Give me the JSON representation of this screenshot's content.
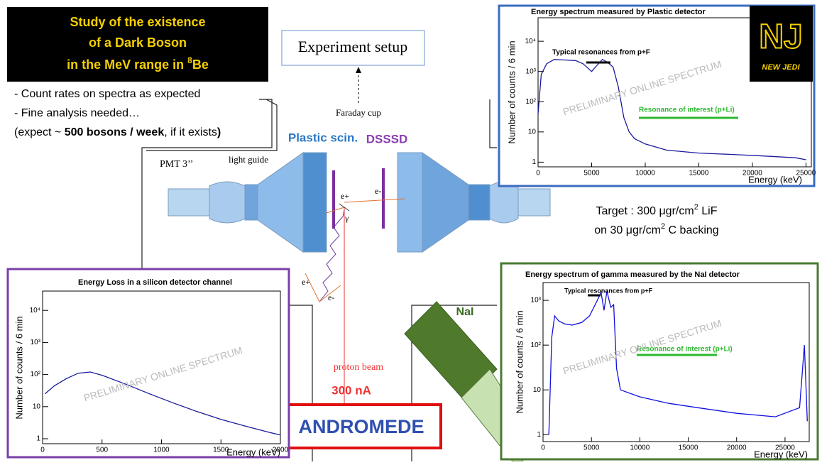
{
  "title_box": {
    "lines": [
      "Study of the existence",
      "of a Dark Boson"
    ],
    "line3": {
      "pre": "in the MeV range in ",
      "sup": "8",
      "post": "Be"
    }
  },
  "bullets": [
    "- Count rates on spectra as expected",
    "- Fine analysis needed…"
  ],
  "bullet3": {
    "pre": "(expect ~ ",
    "bold": "500 bosons / week",
    "post": ", if it exists",
    "end": ")"
  },
  "setup": {
    "title": "Experiment setup",
    "faraday": "Faraday cup",
    "plastic": "Plastic scin.",
    "dsssd": "DSSSD",
    "pmt": "PMT 3’’",
    "guide": "light guide",
    "e_plus": "e+",
    "e_minus": "e-",
    "gamma": "γ",
    "beam": "proton beam",
    "current": "300 nA",
    "nai": "NaI",
    "accelerator": "ANDROMEDE"
  },
  "target": {
    "line1": {
      "pre": "Target : 300 μgr/cm",
      "sup": "2",
      "post": " LiF"
    },
    "line2": {
      "pre": "on 30 μgr/cm",
      "sup": "2",
      "post": " C backing"
    }
  },
  "logo": {
    "mark": "NJ",
    "name": "NEW JEDI"
  },
  "chart_data": [
    {
      "type": "line",
      "title": "Energy spectrum measured by Plastic detector",
      "x_label": "Energy (keV)",
      "y_label": "Number of counts / 6 min",
      "log_y": true,
      "xlim": [
        0,
        25500
      ],
      "xticks": [
        0,
        5000,
        10000,
        15000,
        20000,
        25000
      ],
      "ylim": [
        0.7,
        60000
      ],
      "yticks": [
        1,
        10,
        {
          "value": 100,
          "label": "10²"
        },
        {
          "value": 1000,
          "label": "10³"
        },
        {
          "value": 10000,
          "label": "10⁴"
        }
      ],
      "annotations": [
        "Typical resonances from p+F",
        "Resonance of interest (p+Li)",
        "PRELIMINARY ONLINE SPECTRUM"
      ],
      "series": [
        {
          "color": "#1a1a9c",
          "x": [
            0,
            300,
            800,
            1500,
            2500,
            3500,
            4200,
            5000,
            5500,
            6000,
            6500,
            7000,
            7500,
            8000,
            8500,
            9000,
            10000,
            12000,
            15000,
            18000,
            21000,
            24000,
            25000
          ],
          "values": [
            40,
            800,
            1800,
            2500,
            2400,
            2300,
            1800,
            1000,
            1600,
            2500,
            2000,
            1400,
            300,
            30,
            10,
            6,
            4,
            2.5,
            2,
            1.8,
            1.6,
            1.4,
            1.2
          ]
        }
      ]
    },
    {
      "type": "line",
      "title": "Energy Loss in a silicon detector channel",
      "x_label": "Energy (keV)",
      "y_label": "Number of counts / 6 min",
      "log_y": true,
      "xlim": [
        0,
        2000
      ],
      "xticks": [
        0,
        500,
        1000,
        1500,
        2000
      ],
      "ylim": [
        0.7,
        40000
      ],
      "yticks": [
        1,
        10,
        {
          "value": 100,
          "label": "10²"
        },
        {
          "value": 1000,
          "label": "10³"
        },
        {
          "value": 10000,
          "label": "10⁴"
        }
      ],
      "annotations": [
        "PRELIMINARY ONLINE SPECTRUM"
      ],
      "series": [
        {
          "color": "#1a1a9c",
          "x": [
            20,
            100,
            200,
            300,
            400,
            500,
            700,
            900,
            1100,
            1300,
            1500,
            1700,
            1900,
            2000
          ],
          "values": [
            25,
            45,
            75,
            110,
            120,
            95,
            50,
            25,
            13,
            7,
            4,
            2.5,
            1.6,
            1.3
          ]
        }
      ]
    },
    {
      "type": "line",
      "title": "Energy spectrum of gamma measured by the NaI detector",
      "x_label": "Energy (keV)",
      "y_label": "Number of counts / 6 min",
      "log_y": true,
      "xlim": [
        0,
        27500
      ],
      "xticks": [
        0,
        5000,
        10000,
        15000,
        20000,
        25000
      ],
      "ylim": [
        0.7,
        2500
      ],
      "yticks": [
        1,
        10,
        {
          "value": 100,
          "label": "10²"
        },
        {
          "value": 1000,
          "label": "10³"
        }
      ],
      "annotations": [
        "Typical resonances from p+F",
        "Resonance of interest (p+Li)",
        "PRELIMINARY ONLINE SPECTRUM"
      ],
      "series": [
        {
          "color": "#1010e0",
          "x": [
            600,
            900,
            1200,
            1600,
            2200,
            3000,
            4000,
            4800,
            5500,
            6000,
            6300,
            6600,
            7000,
            7300,
            7600,
            8000,
            10000,
            13000,
            16000,
            20000,
            24000,
            26500,
            27000,
            27300
          ],
          "values": [
            1,
            150,
            450,
            350,
            300,
            280,
            320,
            450,
            900,
            1500,
            600,
            1600,
            700,
            800,
            30,
            10,
            7,
            5,
            4,
            3,
            2.5,
            4,
            100,
            2
          ]
        }
      ]
    }
  ]
}
